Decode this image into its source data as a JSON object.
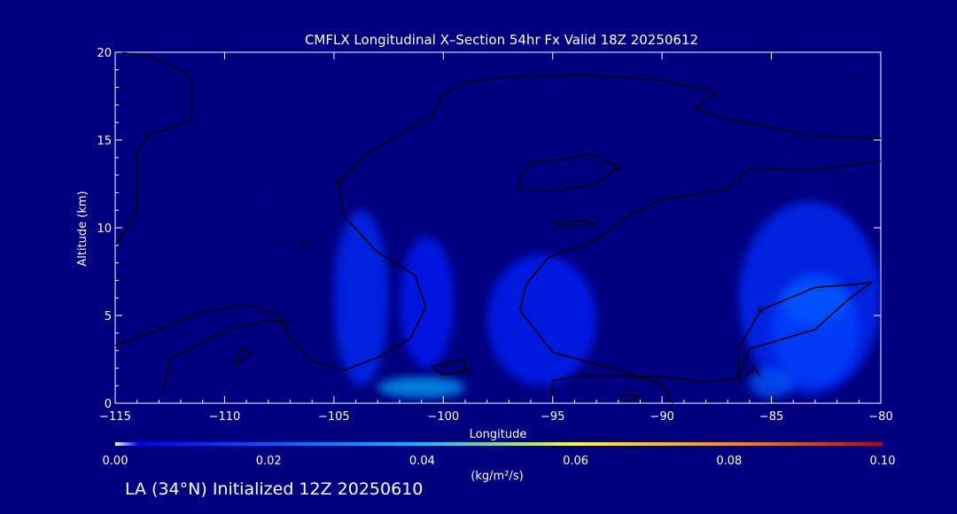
{
  "chart_data": {
    "type": "heatmap",
    "title": "CMFLX Longitudinal X–Section 54hr  Fx Valid 18Z 20250612",
    "xlabel": "Longitude",
    "ylabel": "Altitude (km)",
    "xlim": [
      -115,
      -80
    ],
    "ylim": [
      0,
      20
    ],
    "x_ticks": [
      -115,
      -110,
      -105,
      -100,
      -95,
      -90,
      -85,
      -80
    ],
    "x_tick_labels": [
      "−115",
      "−110",
      "−105",
      "−100",
      "−95",
      "−90",
      "−85",
      "−80"
    ],
    "y_ticks": [
      0,
      5,
      10,
      15,
      20
    ],
    "y_tick_labels": [
      "0",
      "5",
      "10",
      "15",
      "20"
    ],
    "colorbar": {
      "label": "(kg/m²/s)",
      "ticks": [
        0.0,
        0.02,
        0.04,
        0.06,
        0.08,
        0.1
      ],
      "tick_labels": [
        "0.00",
        "0.02",
        "0.04",
        "0.06",
        "0.08",
        "0.10"
      ],
      "colors": [
        "#ffffff",
        "#0000ff",
        "#00c0ff",
        "#ffff00",
        "#ff8000",
        "#c00000"
      ]
    },
    "background_color": "#000080",
    "shaded_regions": [
      {
        "lon": [
          -105,
          -102.5
        ],
        "alt": [
          1,
          11
        ],
        "value": 0.012
      },
      {
        "lon": [
          -102,
          -99.5
        ],
        "alt": [
          2,
          9.5
        ],
        "value": 0.009
      },
      {
        "lon": [
          -98,
          -93
        ],
        "alt": [
          1,
          8.5
        ],
        "value": 0.01
      },
      {
        "lon": [
          -86.5,
          -80
        ],
        "alt": [
          0.5,
          11.5
        ],
        "value": 0.012
      },
      {
        "lon": [
          -85,
          -81
        ],
        "alt": [
          1,
          7.5
        ],
        "value": 0.016
      },
      {
        "lon": [
          -84.5,
          -81.5
        ],
        "alt": [
          4.5,
          7
        ],
        "value": 0.02
      },
      {
        "lon": [
          -103,
          -99
        ],
        "alt": [
          0.3,
          1.5
        ],
        "value": 0.035
      },
      {
        "lon": [
          -86,
          -84
        ],
        "alt": [
          0.3,
          2
        ],
        "value": 0.02
      }
    ],
    "contours": [
      {
        "label": "0",
        "points": [
          [
            -115,
            3.3
          ],
          [
            -113,
            4.2
          ],
          [
            -111,
            5.2
          ],
          [
            -109,
            5.6
          ],
          [
            -107.6,
            5.1
          ],
          [
            -107,
            3.7
          ],
          [
            -106,
            2.4
          ],
          [
            -104.5,
            1.9
          ],
          [
            -103,
            2.6
          ],
          [
            -101.5,
            3.7
          ],
          [
            -100.8,
            5.5
          ],
          [
            -101.3,
            7.3
          ],
          [
            -103,
            8.6
          ],
          [
            -104.5,
            10.6
          ],
          [
            -104.8,
            12.6
          ],
          [
            -103.5,
            14.2
          ],
          [
            -102,
            15.3
          ],
          [
            -100.5,
            16.4
          ],
          [
            -100,
            17.6
          ],
          [
            -99,
            18.3
          ],
          [
            -97,
            18.6
          ],
          [
            -93.5,
            18.7
          ],
          [
            -90,
            18.4
          ],
          [
            -87.5,
            17.7
          ],
          [
            -88.5,
            16.8
          ],
          [
            -87,
            16.2
          ],
          [
            -83,
            15.2
          ],
          [
            -80,
            15.1
          ]
        ]
      },
      {
        "label": "0",
        "points": [
          [
            -95,
            0.1
          ],
          [
            -95,
            1.3
          ],
          [
            -93.5,
            1.6
          ],
          [
            -90,
            1.5
          ],
          [
            -88,
            1.2
          ],
          [
            -86.5,
            1.4
          ],
          [
            -86.5,
            3.1
          ],
          [
            -85.5,
            5.3
          ],
          [
            -83,
            6.6
          ],
          [
            -81,
            6.8
          ],
          [
            -80.4,
            6.9
          ],
          [
            -81.5,
            5.9
          ],
          [
            -83,
            4.2
          ],
          [
            -86,
            3.1
          ],
          [
            -86.5,
            1.4
          ]
        ]
      },
      {
        "label": "",
        "points": [
          [
            -89.5,
            0
          ],
          [
            -90,
            1.1
          ],
          [
            -92,
            1.9
          ],
          [
            -95,
            2.9
          ],
          [
            -96.5,
            5.3
          ],
          [
            -96.2,
            6.8
          ],
          [
            -95.2,
            8.3
          ],
          [
            -93,
            9.3
          ],
          [
            -91.5,
            10.7
          ],
          [
            -90,
            11.6
          ],
          [
            -87,
            12.2
          ],
          [
            -86,
            13.4
          ],
          [
            -83,
            13.3
          ],
          [
            -80,
            13.8
          ]
        ]
      },
      {
        "label": "10",
        "points": [
          [
            -96.5,
            12.8
          ],
          [
            -96,
            13.7
          ],
          [
            -94.5,
            13.9
          ],
          [
            -93.2,
            14.2
          ],
          [
            -92,
            13.4
          ],
          [
            -93,
            12.5
          ],
          [
            -95,
            12.1
          ],
          [
            -96.5,
            12.2
          ],
          [
            -96.5,
            12.8
          ]
        ]
      },
      {
        "label": "",
        "points": [
          [
            -95,
            10.3
          ],
          [
            -93.5,
            10.4
          ],
          [
            -93,
            10.2
          ],
          [
            -94.5,
            10.1
          ],
          [
            -95,
            10.3
          ]
        ]
      },
      {
        "label": "10",
        "points": [
          [
            -100.5,
            2.1
          ],
          [
            -99,
            2.5
          ],
          [
            -99,
            1.8
          ],
          [
            -100,
            1.6
          ],
          [
            -100.5,
            2.1
          ]
        ]
      },
      {
        "label": "",
        "points": [
          [
            -112.8,
            0.6
          ],
          [
            -112.5,
            2.5
          ],
          [
            -110,
            4.1
          ],
          [
            -108,
            4.7
          ],
          [
            -107,
            4.6
          ]
        ]
      },
      {
        "label": "",
        "points": [
          [
            -109.5,
            2.2
          ],
          [
            -108.8,
            2.8
          ],
          [
            -109.2,
            3.2
          ],
          [
            -109.5,
            2.2
          ]
        ]
      },
      {
        "label": "0",
        "points": [
          [
            -114.8,
            20
          ],
          [
            -113.5,
            19.8
          ],
          [
            -112,
            19
          ],
          [
            -111.5,
            18.5
          ],
          [
            -111.5,
            16.2
          ],
          [
            -113.5,
            15.2
          ],
          [
            -114,
            14.3
          ],
          [
            -114,
            11
          ],
          [
            -114.5,
            9.9
          ],
          [
            -115,
            9
          ]
        ]
      },
      {
        "label": "",
        "points": [
          [
            -92,
            0.1
          ],
          [
            -91.7,
            0.5
          ],
          [
            -91,
            0.4
          ],
          [
            -91.5,
            0.1
          ]
        ]
      },
      {
        "label": "",
        "points": [
          [
            -86.2,
            1.5
          ],
          [
            -85.8,
            2
          ],
          [
            -85.5,
            1.5
          ]
        ]
      }
    ],
    "dashed_contours": [
      {
        "label": "−10",
        "points": [
          [
            -110,
            13.8
          ],
          [
            -108.5,
            12.5
          ],
          [
            -107,
            12.2
          ],
          [
            -105.5,
            11.3
          ],
          [
            -105,
            10.4
          ],
          [
            -105.5,
            9.5
          ],
          [
            -106.5,
            9
          ],
          [
            -108,
            9.2
          ],
          [
            -109.2,
            10.2
          ],
          [
            -110,
            11.6
          ],
          [
            -110.2,
            12.7
          ],
          [
            -110,
            13.8
          ]
        ]
      },
      {
        "label": "",
        "points": [
          [
            -106,
            15.1
          ],
          [
            -105,
            14.6
          ],
          [
            -104.5,
            13.5
          ]
        ]
      },
      {
        "label": "",
        "points": [
          [
            -82.5,
            18.2
          ],
          [
            -81,
            18.6
          ],
          [
            -80.5,
            19
          ]
        ]
      }
    ],
    "footer": "LA (34°N) Initialized 12Z 20250610"
  }
}
